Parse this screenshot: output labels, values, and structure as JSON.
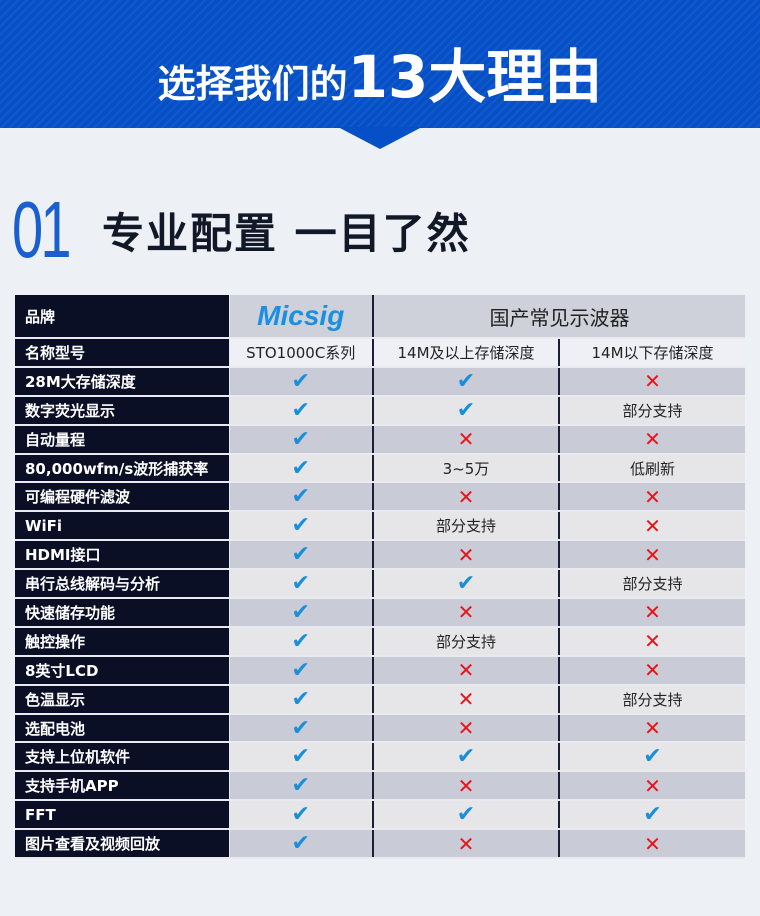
{
  "banner": {
    "title_part1": "选择我们的",
    "title_part2": "13大理由"
  },
  "section": {
    "number": "01",
    "title": "专业配置 一目了然"
  },
  "colors": {
    "accent": "#0650c7",
    "check": "#1a8fd8",
    "cross": "#e8141a",
    "label_bg": "#0a0f26"
  },
  "table": {
    "brand_label": "品牌",
    "brand_micsig": "Micsig",
    "brand_domestic": "国产常见示波器",
    "model_label": "名称型号",
    "models": [
      "STO1000C系列",
      "14M及以上存储深度",
      "14M以下存储深度"
    ],
    "rows": [
      {
        "feature": "28M大存储深度",
        "values": [
          "check",
          "check",
          "cross"
        ]
      },
      {
        "feature": "数字荧光显示",
        "values": [
          "check",
          "check",
          "部分支持"
        ]
      },
      {
        "feature": "自动量程",
        "values": [
          "check",
          "cross",
          "cross"
        ]
      },
      {
        "feature": "80,000wfm/s波形捕获率",
        "values": [
          "check",
          "3~5万",
          "低刷新"
        ]
      },
      {
        "feature": "可编程硬件滤波",
        "values": [
          "check",
          "cross",
          "cross"
        ]
      },
      {
        "feature": "WiFi",
        "values": [
          "check",
          "部分支持",
          "cross"
        ]
      },
      {
        "feature": "HDMI接口",
        "values": [
          "check",
          "cross",
          "cross"
        ]
      },
      {
        "feature": "串行总线解码与分析",
        "values": [
          "check",
          "check",
          "部分支持"
        ]
      },
      {
        "feature": "快速储存功能",
        "values": [
          "check",
          "cross",
          "cross"
        ]
      },
      {
        "feature": "触控操作",
        "values": [
          "check",
          "部分支持",
          "cross"
        ]
      },
      {
        "feature": "8英寸LCD",
        "values": [
          "check",
          "cross",
          "cross"
        ]
      },
      {
        "feature": "色温显示",
        "values": [
          "check",
          "cross",
          "部分支持"
        ]
      },
      {
        "feature": "选配电池",
        "values": [
          "check",
          "cross",
          "cross"
        ]
      },
      {
        "feature": "支持上位机软件",
        "values": [
          "check",
          "check",
          "check"
        ]
      },
      {
        "feature": "支持手机APP",
        "values": [
          "check",
          "cross",
          "cross"
        ]
      },
      {
        "feature": "FFT",
        "values": [
          "check",
          "check",
          "check"
        ]
      },
      {
        "feature": "图片查看及视频回放",
        "values": [
          "check",
          "cross",
          "cross"
        ]
      }
    ]
  }
}
